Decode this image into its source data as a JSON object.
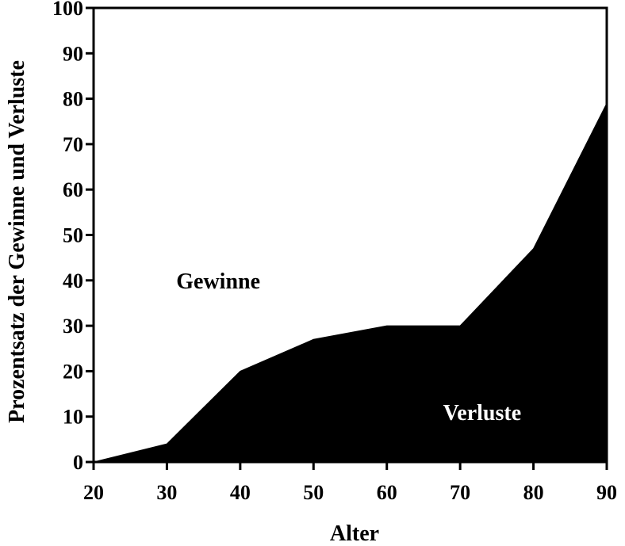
{
  "chart_data": {
    "type": "area",
    "title": "",
    "xlabel": "Alter",
    "ylabel": "Prozentsatz der Gewinne und Verluste",
    "xlim": [
      20,
      90
    ],
    "ylim": [
      0,
      100
    ],
    "x_ticks": [
      20,
      30,
      40,
      50,
      60,
      70,
      80,
      90
    ],
    "y_ticks": [
      0,
      10,
      20,
      30,
      40,
      50,
      60,
      70,
      80,
      90,
      100
    ],
    "grid": false,
    "series": [
      {
        "name": "Verluste",
        "x": [
          20,
          30,
          40,
          50,
          60,
          70,
          80,
          90
        ],
        "values": [
          0,
          4,
          20,
          27,
          30,
          30,
          47,
          79
        ]
      }
    ],
    "annotations": [
      {
        "text": "Gewinne",
        "x": 37,
        "y": 40,
        "color": "#000000"
      },
      {
        "text": "Verluste",
        "x": 73,
        "y": 11,
        "color": "#ffffff"
      }
    ],
    "colors": {
      "loss_fill": "#000000",
      "gain_fill": "#ffffff",
      "axis": "#000000"
    }
  }
}
